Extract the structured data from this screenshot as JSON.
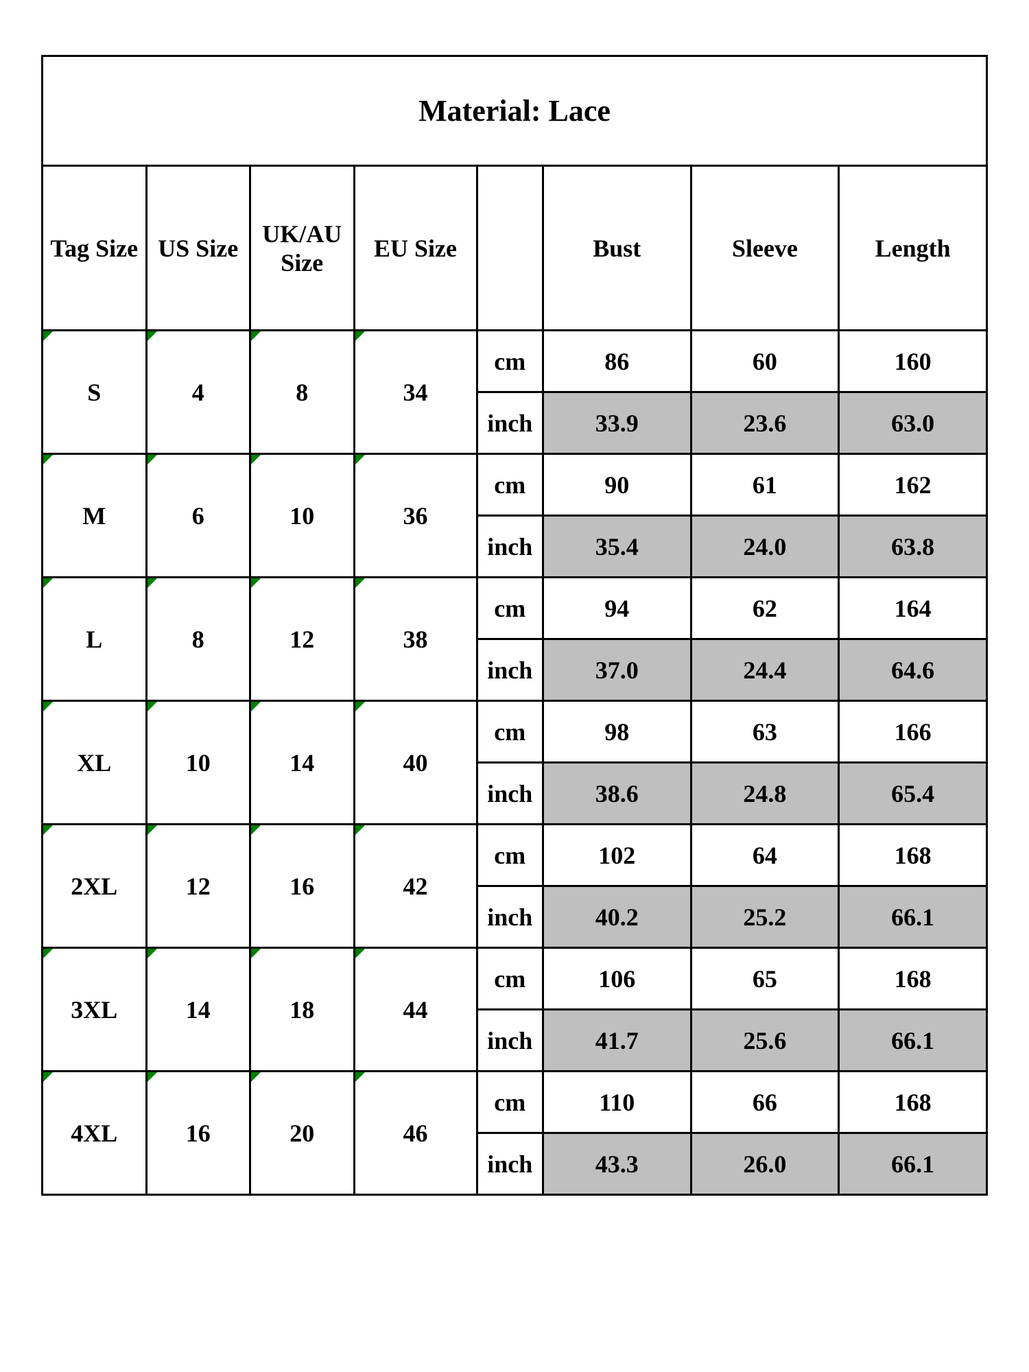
{
  "title": "Material: Lace",
  "headers": {
    "tag": "Tag Size",
    "us": "US Size",
    "uk": "UK/AU Size",
    "eu": "EU Size",
    "unit_cm": "cm",
    "unit_inch": "inch",
    "bust": "Bust",
    "sleeve": "Sleeve",
    "length": "Length"
  },
  "colors": {
    "border": "#000000",
    "shaded_bg": "#bfbfbf",
    "tick": "#008000",
    "background": "#ffffff",
    "text": "#000000"
  },
  "typography": {
    "font_family": "Times New Roman",
    "title_fontsize": 44,
    "header_fontsize": 36,
    "cell_fontsize": 36,
    "font_weight": "bold"
  },
  "rows": [
    {
      "tag": "S",
      "us": "4",
      "uk": "8",
      "eu": "34",
      "cm": {
        "bust": "86",
        "sleeve": "60",
        "length": "160"
      },
      "inch": {
        "bust": "33.9",
        "sleeve": "23.6",
        "length": "63.0"
      }
    },
    {
      "tag": "M",
      "us": "6",
      "uk": "10",
      "eu": "36",
      "cm": {
        "bust": "90",
        "sleeve": "61",
        "length": "162"
      },
      "inch": {
        "bust": "35.4",
        "sleeve": "24.0",
        "length": "63.8"
      }
    },
    {
      "tag": "L",
      "us": "8",
      "uk": "12",
      "eu": "38",
      "cm": {
        "bust": "94",
        "sleeve": "62",
        "length": "164"
      },
      "inch": {
        "bust": "37.0",
        "sleeve": "24.4",
        "length": "64.6"
      }
    },
    {
      "tag": "XL",
      "us": "10",
      "uk": "14",
      "eu": "40",
      "cm": {
        "bust": "98",
        "sleeve": "63",
        "length": "166"
      },
      "inch": {
        "bust": "38.6",
        "sleeve": "24.8",
        "length": "65.4"
      }
    },
    {
      "tag": "2XL",
      "us": "12",
      "uk": "16",
      "eu": "42",
      "cm": {
        "bust": "102",
        "sleeve": "64",
        "length": "168"
      },
      "inch": {
        "bust": "40.2",
        "sleeve": "25.2",
        "length": "66.1"
      }
    },
    {
      "tag": "3XL",
      "us": "14",
      "uk": "18",
      "eu": "44",
      "cm": {
        "bust": "106",
        "sleeve": "65",
        "length": "168"
      },
      "inch": {
        "bust": "41.7",
        "sleeve": "25.6",
        "length": "66.1"
      }
    },
    {
      "tag": "4XL",
      "us": "16",
      "uk": "20",
      "eu": "46",
      "cm": {
        "bust": "110",
        "sleeve": "66",
        "length": "168"
      },
      "inch": {
        "bust": "43.3",
        "sleeve": "26.0",
        "length": "66.1"
      }
    }
  ]
}
